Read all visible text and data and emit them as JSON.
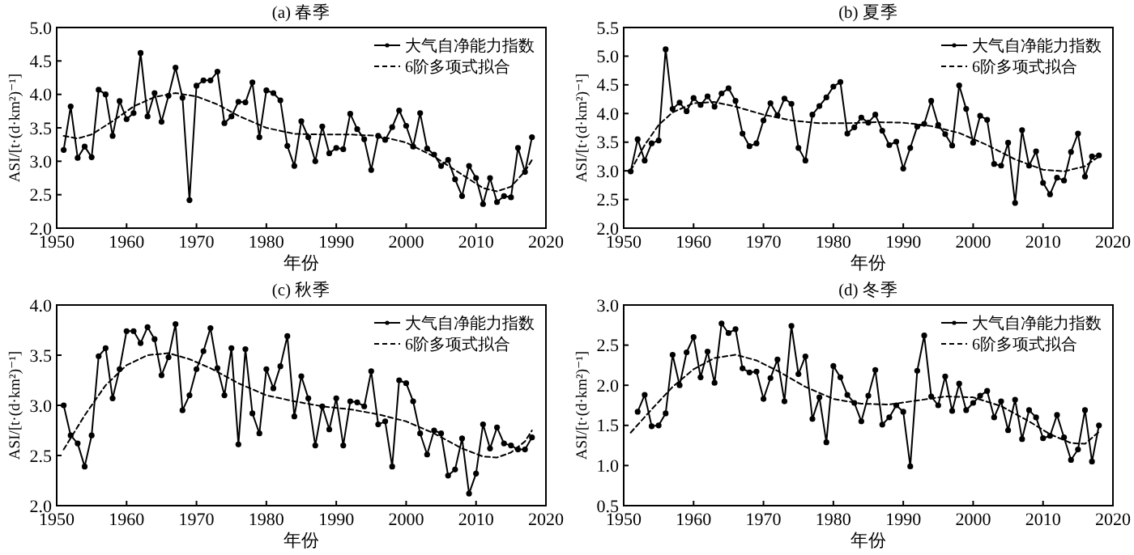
{
  "chart_data": [
    {
      "type": "line",
      "title": "(a) 春季",
      "xlabel": "年份",
      "ylabel": "ASI/[t·(d·km²)⁻¹]",
      "xlim": [
        1950,
        2020
      ],
      "xticks": [
        1950,
        1960,
        1970,
        1980,
        1990,
        2000,
        2010,
        2020
      ],
      "ylim": [
        2,
        5
      ],
      "yticks": [
        {
          "value": 2,
          "label": "2.0"
        },
        {
          "value": 2.5,
          "label": "2.5"
        },
        {
          "value": 3,
          "label": "3.0"
        },
        {
          "value": 3.5,
          "label": "3.5"
        },
        {
          "value": 4,
          "label": "4.0"
        },
        {
          "value": 4.5,
          "label": "4.5"
        },
        {
          "value": 5,
          "label": "5.0"
        }
      ],
      "legend": "top right",
      "series": [
        {
          "name": "大气自净能力指数",
          "color": "#000000",
          "marker": "circle",
          "line_style": "solid",
          "x": [
            1951,
            1952,
            1953,
            1954,
            1955,
            1956,
            1957,
            1958,
            1959,
            1960,
            1961,
            1962,
            1963,
            1964,
            1965,
            1966,
            1967,
            1968,
            1969,
            1970,
            1971,
            1972,
            1973,
            1974,
            1975,
            1976,
            1977,
            1978,
            1979,
            1980,
            1981,
            1982,
            1983,
            1984,
            1985,
            1986,
            1987,
            1988,
            1989,
            1990,
            1991,
            1992,
            1993,
            1994,
            1995,
            1996,
            1997,
            1998,
            1999,
            2000,
            2001,
            2002,
            2003,
            2004,
            2005,
            2006,
            2007,
            2008,
            2009,
            2010,
            2011,
            2012,
            2013,
            2014,
            2015,
            2016,
            2017,
            2018
          ],
          "values": [
            3.17,
            3.82,
            3.05,
            3.22,
            3.06,
            4.07,
            4.0,
            3.38,
            3.9,
            3.63,
            3.72,
            4.62,
            3.67,
            4.02,
            3.59,
            3.98,
            4.4,
            3.95,
            2.42,
            4.13,
            4.21,
            4.21,
            4.34,
            3.57,
            3.67,
            3.89,
            3.88,
            4.18,
            3.36,
            4.06,
            4.02,
            3.91,
            3.23,
            2.93,
            3.6,
            3.36,
            3.0,
            3.52,
            3.12,
            3.2,
            3.18,
            3.71,
            3.48,
            3.33,
            2.87,
            3.38,
            3.32,
            3.51,
            3.76,
            3.53,
            3.22,
            3.72,
            3.19,
            3.1,
            2.93,
            3.02,
            2.73,
            2.48,
            2.93,
            2.75,
            2.36,
            2.75,
            2.39,
            2.48,
            2.46,
            3.2,
            2.84,
            3.36
          ]
        },
        {
          "name": "6阶多项式拟合",
          "color": "#000000",
          "marker": "none",
          "line_style": "dashed",
          "x": [
            1951,
            1953,
            1955,
            1958,
            1961,
            1964,
            1967,
            1970,
            1973,
            1976,
            1980,
            1984,
            1988,
            1992,
            1996,
            2000,
            2004,
            2008,
            2011,
            2013,
            2015,
            2017,
            2018
          ],
          "values": [
            3.38,
            3.34,
            3.4,
            3.6,
            3.82,
            3.96,
            4.02,
            3.97,
            3.85,
            3.68,
            3.5,
            3.41,
            3.4,
            3.4,
            3.38,
            3.28,
            3.07,
            2.8,
            2.6,
            2.55,
            2.62,
            2.85,
            3.02
          ]
        }
      ]
    },
    {
      "type": "line",
      "title": "(b) 夏季",
      "xlabel": "年份",
      "ylabel": "ASI/[t·(d·km²)⁻¹]",
      "xlim": [
        1950,
        2020
      ],
      "xticks": [
        1950,
        1960,
        1970,
        1980,
        1990,
        2000,
        2010,
        2020
      ],
      "ylim": [
        2,
        5.5
      ],
      "yticks": [
        {
          "value": 2,
          "label": "2.0"
        },
        {
          "value": 2.5,
          "label": "2.5"
        },
        {
          "value": 3,
          "label": "3.0"
        },
        {
          "value": 3.5,
          "label": "3.5"
        },
        {
          "value": 4,
          "label": "4.0"
        },
        {
          "value": 4.5,
          "label": "4.5"
        },
        {
          "value": 5,
          "label": "5.0"
        },
        {
          "value": 5.5,
          "label": "5.5"
        }
      ],
      "legend": "top right",
      "series": [
        {
          "name": "大气自净能力指数",
          "color": "#000000",
          "marker": "circle",
          "line_style": "solid",
          "x": [
            1951,
            1952,
            1953,
            1954,
            1955,
            1956,
            1957,
            1958,
            1959,
            1960,
            1961,
            1962,
            1963,
            1964,
            1965,
            1966,
            1967,
            1968,
            1969,
            1970,
            1971,
            1972,
            1973,
            1974,
            1975,
            1976,
            1977,
            1978,
            1979,
            1980,
            1981,
            1982,
            1983,
            1984,
            1985,
            1986,
            1987,
            1988,
            1989,
            1990,
            1991,
            1992,
            1993,
            1994,
            1995,
            1996,
            1997,
            1998,
            1999,
            2000,
            2001,
            2002,
            2003,
            2004,
            2005,
            2006,
            2007,
            2008,
            2009,
            2010,
            2011,
            2012,
            2013,
            2014,
            2015,
            2016,
            2017,
            2018
          ],
          "values": [
            2.99,
            3.55,
            3.18,
            3.48,
            3.53,
            5.12,
            4.08,
            4.19,
            4.04,
            4.27,
            4.15,
            4.3,
            4.12,
            4.35,
            4.44,
            4.22,
            3.65,
            3.43,
            3.48,
            3.88,
            4.18,
            3.97,
            4.26,
            4.17,
            3.4,
            3.18,
            3.98,
            4.13,
            4.28,
            4.47,
            4.55,
            3.65,
            3.76,
            3.93,
            3.84,
            3.98,
            3.7,
            3.45,
            3.51,
            3.04,
            3.4,
            3.77,
            3.82,
            4.22,
            3.8,
            3.64,
            3.44,
            4.49,
            4.08,
            3.49,
            3.96,
            3.89,
            3.12,
            3.09,
            3.49,
            2.44,
            3.71,
            3.09,
            3.34,
            2.79,
            2.59,
            2.88,
            2.83,
            3.33,
            3.65,
            2.9,
            3.25,
            3.27
          ]
        },
        {
          "name": "6阶多项式拟合",
          "color": "#000000",
          "marker": "none",
          "line_style": "dashed",
          "x": [
            1951,
            1953,
            1955,
            1957,
            1960,
            1963,
            1966,
            1970,
            1974,
            1978,
            1982,
            1986,
            1990,
            1994,
            1998,
            2002,
            2006,
            2010,
            2013,
            2016,
            2018
          ],
          "values": [
            3.0,
            3.45,
            3.8,
            4.02,
            4.18,
            4.2,
            4.12,
            3.98,
            3.88,
            3.83,
            3.83,
            3.85,
            3.84,
            3.78,
            3.66,
            3.45,
            3.2,
            3.02,
            2.99,
            3.08,
            3.25
          ]
        }
      ]
    },
    {
      "type": "line",
      "title": "(c) 秋季",
      "xlabel": "年份",
      "ylabel": "ASI/[t·(d·km²)⁻¹]",
      "xlim": [
        1950,
        2020
      ],
      "xticks": [
        1950,
        1960,
        1970,
        1980,
        1990,
        2000,
        2010,
        2020
      ],
      "ylim": [
        2,
        4
      ],
      "yticks": [
        {
          "value": 2,
          "label": "2.0"
        },
        {
          "value": 2.5,
          "label": "2.5"
        },
        {
          "value": 3,
          "label": "3.0"
        },
        {
          "value": 3.5,
          "label": "3.5"
        },
        {
          "value": 4,
          "label": "4.0"
        }
      ],
      "legend": "top right",
      "series": [
        {
          "name": "大气自净能力指数",
          "color": "#000000",
          "marker": "circle",
          "line_style": "solid",
          "x": [
            1951,
            1952,
            1953,
            1954,
            1955,
            1956,
            1957,
            1958,
            1959,
            1960,
            1961,
            1962,
            1963,
            1964,
            1965,
            1966,
            1967,
            1968,
            1969,
            1970,
            1971,
            1972,
            1973,
            1974,
            1975,
            1976,
            1977,
            1978,
            1979,
            1980,
            1981,
            1982,
            1983,
            1984,
            1985,
            1986,
            1987,
            1988,
            1989,
            1990,
            1991,
            1992,
            1993,
            1994,
            1995,
            1996,
            1997,
            1998,
            1999,
            2000,
            2001,
            2002,
            2003,
            2004,
            2005,
            2006,
            2007,
            2008,
            2009,
            2010,
            2011,
            2012,
            2013,
            2014,
            2015,
            2016,
            2017,
            2018
          ],
          "values": [
            3.0,
            2.7,
            2.62,
            2.39,
            2.7,
            3.49,
            3.57,
            3.07,
            3.36,
            3.74,
            3.74,
            3.62,
            3.78,
            3.66,
            3.3,
            3.48,
            3.81,
            2.95,
            3.1,
            3.36,
            3.54,
            3.77,
            3.37,
            3.1,
            3.57,
            2.61,
            3.56,
            2.92,
            2.72,
            3.36,
            3.17,
            3.39,
            3.69,
            2.89,
            3.29,
            3.07,
            2.6,
            2.99,
            2.76,
            3.07,
            2.6,
            3.04,
            3.03,
            2.99,
            3.34,
            2.81,
            2.84,
            2.39,
            3.25,
            3.22,
            3.04,
            2.72,
            2.51,
            2.75,
            2.72,
            2.3,
            2.36,
            2.67,
            2.12,
            2.32,
            2.81,
            2.57,
            2.78,
            2.62,
            2.6,
            2.56,
            2.56,
            2.68
          ]
        },
        {
          "name": "6阶多项式拟合",
          "color": "#000000",
          "marker": "none",
          "line_style": "dashed",
          "x": [
            1951,
            1954,
            1957,
            1960,
            1963,
            1966,
            1969,
            1972,
            1976,
            1980,
            1984,
            1988,
            1992,
            1996,
            2000,
            2004,
            2008,
            2011,
            2013,
            2015,
            2017,
            2018
          ],
          "values": [
            2.56,
            2.9,
            3.2,
            3.4,
            3.5,
            3.52,
            3.46,
            3.37,
            3.22,
            3.1,
            3.04,
            2.99,
            2.96,
            2.91,
            2.84,
            2.72,
            2.57,
            2.49,
            2.48,
            2.53,
            2.64,
            2.75
          ]
        }
      ]
    },
    {
      "type": "line",
      "title": "(d) 冬季",
      "xlabel": "年份",
      "ylabel": "ASI/[t·(d·km²)⁻¹]",
      "xlim": [
        1950,
        2020
      ],
      "xticks": [
        1950,
        1960,
        1970,
        1980,
        1990,
        2000,
        2010,
        2020
      ],
      "ylim": [
        0.5,
        3
      ],
      "yticks": [
        {
          "value": 0.5,
          "label": "0.5"
        },
        {
          "value": 1,
          "label": "1.0"
        },
        {
          "value": 1.5,
          "label": "1.5"
        },
        {
          "value": 2,
          "label": "2.0"
        },
        {
          "value": 2.5,
          "label": "2.5"
        },
        {
          "value": 3,
          "label": "3.0"
        }
      ],
      "legend": "top right",
      "series": [
        {
          "name": "大气自净能力指数",
          "color": "#000000",
          "marker": "circle",
          "line_style": "solid",
          "x": [
            1952,
            1953,
            1954,
            1955,
            1956,
            1957,
            1958,
            1959,
            1960,
            1961,
            1962,
            1963,
            1964,
            1965,
            1966,
            1967,
            1968,
            1969,
            1970,
            1971,
            1972,
            1973,
            1974,
            1975,
            1976,
            1977,
            1978,
            1979,
            1980,
            1981,
            1982,
            1983,
            1984,
            1985,
            1986,
            1987,
            1988,
            1989,
            1990,
            1991,
            1992,
            1993,
            1994,
            1995,
            1996,
            1997,
            1998,
            1999,
            2000,
            2001,
            2002,
            2003,
            2004,
            2005,
            2006,
            2007,
            2008,
            2009,
            2010,
            2011,
            2012,
            2013,
            2014,
            2015,
            2016,
            2017,
            2018
          ],
          "values": [
            1.67,
            1.88,
            1.49,
            1.5,
            1.65,
            2.38,
            2.0,
            2.41,
            2.6,
            2.1,
            2.42,
            2.03,
            2.77,
            2.65,
            2.7,
            2.21,
            2.16,
            2.17,
            1.83,
            2.09,
            2.32,
            1.8,
            2.74,
            2.14,
            2.36,
            1.58,
            1.85,
            1.29,
            2.24,
            2.1,
            1.88,
            1.78,
            1.55,
            1.87,
            2.19,
            1.51,
            1.6,
            1.75,
            1.67,
            0.99,
            2.18,
            2.62,
            1.86,
            1.75,
            2.11,
            1.68,
            2.02,
            1.69,
            1.78,
            1.87,
            1.93,
            1.6,
            1.8,
            1.44,
            1.82,
            1.33,
            1.69,
            1.6,
            1.34,
            1.37,
            1.63,
            1.35,
            1.07,
            1.2,
            1.69,
            1.05,
            1.5
          ]
        },
        {
          "name": "6阶多项式拟合",
          "color": "#000000",
          "marker": "none",
          "line_style": "dashed",
          "x": [
            1951,
            1954,
            1957,
            1960,
            1963,
            1966,
            1969,
            1972,
            1976,
            1980,
            1984,
            1988,
            1992,
            1996,
            2000,
            2004,
            2008,
            2011,
            2014,
            2016,
            2018
          ],
          "values": [
            1.41,
            1.7,
            1.98,
            2.2,
            2.34,
            2.38,
            2.31,
            2.18,
            1.98,
            1.83,
            1.77,
            1.76,
            1.81,
            1.86,
            1.85,
            1.74,
            1.55,
            1.39,
            1.28,
            1.27,
            1.42
          ]
        }
      ]
    }
  ]
}
